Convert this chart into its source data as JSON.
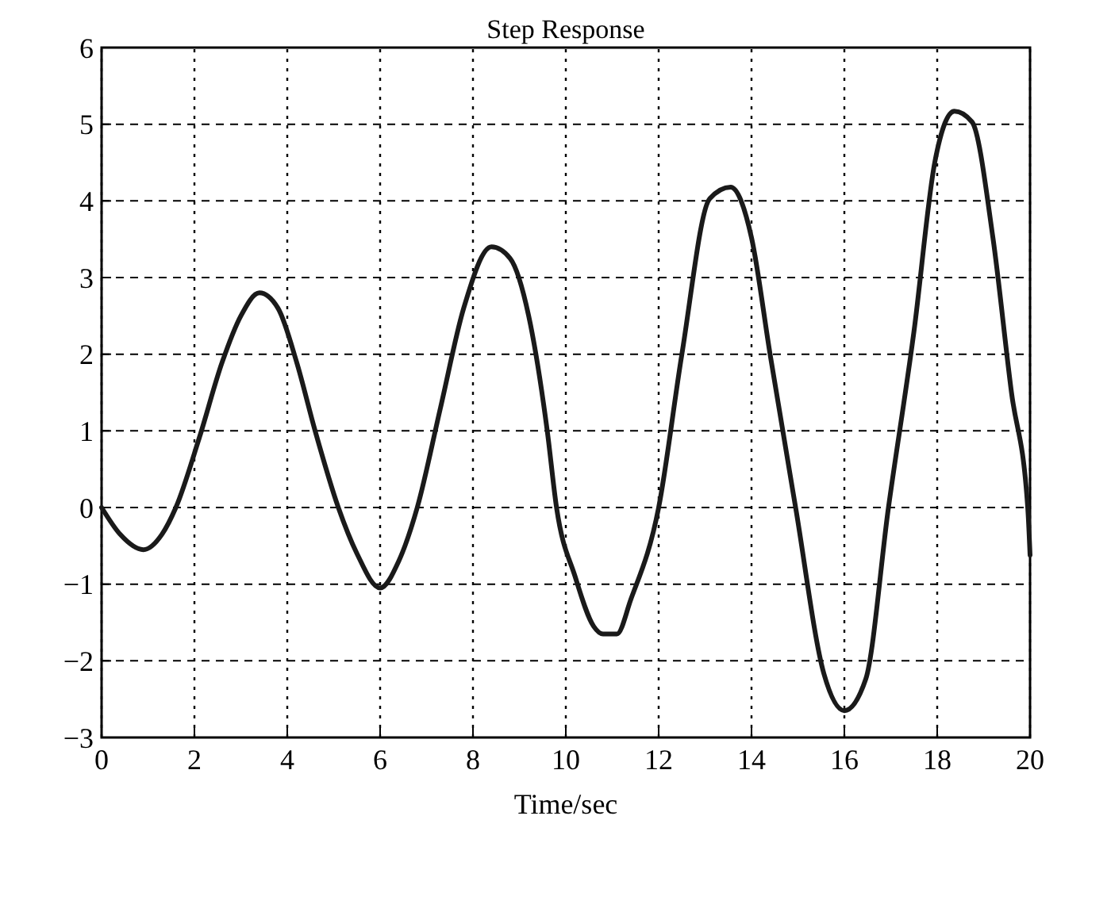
{
  "chart_data": {
    "type": "line",
    "title": "Step Response",
    "xlabel": "Time/sec",
    "x": [
      0,
      0.4,
      0.9,
      1.3,
      1.6,
      2.1,
      2.6,
      3.0,
      3.4,
      3.8,
      4.2,
      4.6,
      5.1,
      5.5,
      6.0,
      6.4,
      6.8,
      7.3,
      7.8,
      8.4,
      8.8,
      9.2,
      9.6,
      9.8,
      10.2,
      10.6,
      10.8,
      11.1,
      11.4,
      12.0,
      12.5,
      13.1,
      13.55,
      14.0,
      14.4,
      14.95,
      15.56,
      16.0,
      16.46,
      16.95,
      17.5,
      17.95,
      18.37,
      18.75,
      19.2,
      19.6,
      19.95,
      20
    ],
    "series": [
      {
        "color": "#1a1a1a",
        "values": [
          0,
          -0.35,
          -0.55,
          -0.35,
          0,
          0.9,
          1.9,
          2.5,
          2.8,
          2.6,
          1.9,
          1.0,
          0,
          -0.6,
          -1.05,
          -0.7,
          0,
          1.3,
          2.6,
          3.4,
          3.25,
          2.5,
          1.0,
          0,
          -0.9,
          -1.55,
          -1.65,
          -1.65,
          -1.2,
          0,
          2.0,
          4.03,
          4.18,
          3.52,
          2.0,
          0,
          -2.17,
          -2.65,
          -2.24,
          0,
          2.3,
          4.51,
          5.17,
          5.03,
          3.52,
          1.5,
          0,
          -0.62
        ]
      }
    ],
    "xlim": [
      0,
      20
    ],
    "xticks": [
      0,
      2,
      4,
      6,
      8,
      10,
      12,
      14,
      16,
      18,
      20
    ],
    "ylim": [
      -3,
      6
    ],
    "yticks": [
      -3,
      -2,
      -1,
      0,
      1,
      2,
      3,
      4,
      5,
      6
    ],
    "grid": true,
    "marker": "none",
    "line_style": "solid"
  }
}
